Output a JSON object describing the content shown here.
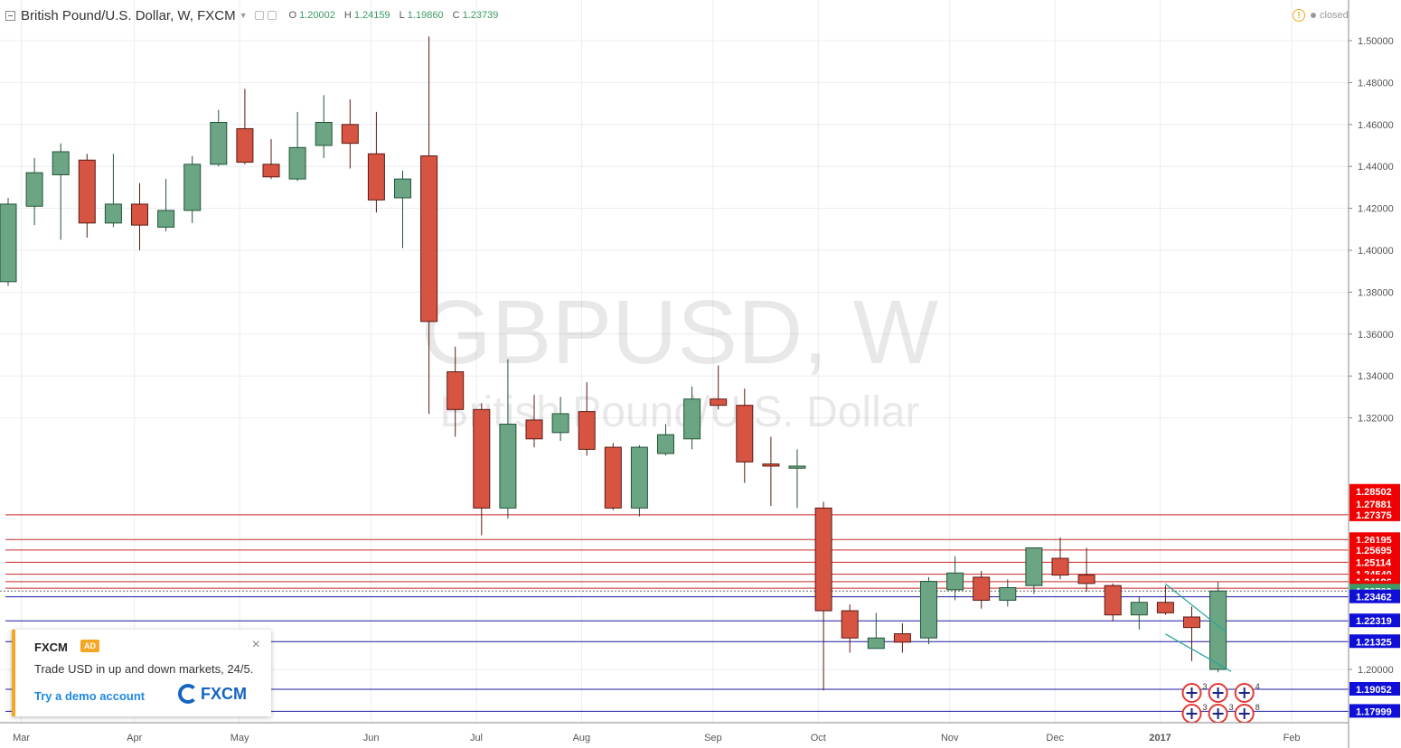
{
  "header": {
    "title": "British Pound/U.S. Dollar, W, FXCM",
    "ohlc": [
      {
        "k": "O",
        "v": "1.20002"
      },
      {
        "k": "H",
        "v": "1.24159"
      },
      {
        "k": "L",
        "v": "1.19860"
      },
      {
        "k": "C",
        "v": "1.23739"
      }
    ]
  },
  "status": {
    "label": "closed",
    "warning_icon": "!"
  },
  "watermark": {
    "symbol": "GBPUSD, W",
    "name": "British Pound/U.S. Dollar"
  },
  "colors": {
    "up": "#6ba583",
    "up_border": "#225437",
    "down": "#d75442",
    "down_border": "#5b1a13",
    "red_line": "#c62828",
    "blue_line": "#1a1aa0",
    "grid": "#e9edf1",
    "axis_text": "#555555",
    "current": "#3c9a63",
    "trend": "#26a69a"
  },
  "ad": {
    "brand": "FXCM",
    "badge": "AD",
    "text": "Trade USD in up and down markets, 24/5.",
    "cta": "Try a demo account",
    "logo": "FXCM",
    "close": "×"
  },
  "chart_data": {
    "type": "candlestick",
    "y_ticks": [
      "1.50000",
      "1.48000",
      "1.46000",
      "1.44000",
      "1.42000",
      "1.40000",
      "1.38000",
      "1.36000",
      "1.34000",
      "1.32000",
      "1.20000"
    ],
    "x_labels": [
      {
        "label": "Mar",
        "index": 0.5
      },
      {
        "label": "Apr",
        "index": 4.8
      },
      {
        "label": "May",
        "index": 8.8
      },
      {
        "label": "Jun",
        "index": 13.8
      },
      {
        "label": "Jul",
        "index": 17.8
      },
      {
        "label": "Aug",
        "index": 21.8
      },
      {
        "label": "Sep",
        "index": 26.8
      },
      {
        "label": "Oct",
        "index": 30.8
      },
      {
        "label": "Nov",
        "index": 35.8
      },
      {
        "label": "Dec",
        "index": 39.8
      },
      {
        "label": "2017",
        "index": 43.8,
        "bold": true
      },
      {
        "label": "Feb",
        "index": 48.8
      }
    ],
    "candles": [
      {
        "o": 1.385,
        "h": 1.425,
        "l": 1.383,
        "c": 1.422
      },
      {
        "o": 1.421,
        "h": 1.444,
        "l": 1.412,
        "c": 1.437
      },
      {
        "o": 1.436,
        "h": 1.451,
        "l": 1.405,
        "c": 1.447
      },
      {
        "o": 1.443,
        "h": 1.446,
        "l": 1.406,
        "c": 1.413
      },
      {
        "o": 1.413,
        "h": 1.446,
        "l": 1.411,
        "c": 1.422
      },
      {
        "o": 1.422,
        "h": 1.432,
        "l": 1.4,
        "c": 1.412
      },
      {
        "o": 1.411,
        "h": 1.434,
        "l": 1.409,
        "c": 1.419
      },
      {
        "o": 1.419,
        "h": 1.445,
        "l": 1.413,
        "c": 1.441
      },
      {
        "o": 1.441,
        "h": 1.467,
        "l": 1.44,
        "c": 1.461
      },
      {
        "o": 1.458,
        "h": 1.477,
        "l": 1.441,
        "c": 1.442
      },
      {
        "o": 1.441,
        "h": 1.453,
        "l": 1.434,
        "c": 1.435
      },
      {
        "o": 1.434,
        "h": 1.466,
        "l": 1.433,
        "c": 1.449
      },
      {
        "o": 1.45,
        "h": 1.474,
        "l": 1.444,
        "c": 1.461
      },
      {
        "o": 1.46,
        "h": 1.472,
        "l": 1.439,
        "c": 1.451
      },
      {
        "o": 1.446,
        "h": 1.466,
        "l": 1.418,
        "c": 1.424
      },
      {
        "o": 1.425,
        "h": 1.438,
        "l": 1.401,
        "c": 1.434
      },
      {
        "o": 1.445,
        "h": 1.502,
        "l": 1.322,
        "c": 1.366
      },
      {
        "o": 1.342,
        "h": 1.354,
        "l": 1.311,
        "c": 1.324
      },
      {
        "o": 1.324,
        "h": 1.327,
        "l": 1.264,
        "c": 1.277
      },
      {
        "o": 1.277,
        "h": 1.348,
        "l": 1.272,
        "c": 1.317
      },
      {
        "o": 1.319,
        "h": 1.331,
        "l": 1.306,
        "c": 1.31
      },
      {
        "o": 1.313,
        "h": 1.33,
        "l": 1.309,
        "c": 1.322
      },
      {
        "o": 1.323,
        "h": 1.337,
        "l": 1.302,
        "c": 1.305
      },
      {
        "o": 1.306,
        "h": 1.308,
        "l": 1.276,
        "c": 1.277
      },
      {
        "o": 1.277,
        "h": 1.307,
        "l": 1.273,
        "c": 1.306
      },
      {
        "o": 1.303,
        "h": 1.317,
        "l": 1.302,
        "c": 1.312
      },
      {
        "o": 1.31,
        "h": 1.335,
        "l": 1.305,
        "c": 1.329
      },
      {
        "o": 1.329,
        "h": 1.345,
        "l": 1.324,
        "c": 1.326
      },
      {
        "o": 1.326,
        "h": 1.334,
        "l": 1.289,
        "c": 1.299
      },
      {
        "o": 1.298,
        "h": 1.311,
        "l": 1.278,
        "c": 1.297
      },
      {
        "o": 1.296,
        "h": 1.305,
        "l": 1.277,
        "c": 1.297
      },
      {
        "o": 1.277,
        "h": 1.28,
        "l": 1.19,
        "c": 1.228
      },
      {
        "o": 1.228,
        "h": 1.231,
        "l": 1.208,
        "c": 1.215
      },
      {
        "o": 1.21,
        "h": 1.227,
        "l": 1.21,
        "c": 1.215
      },
      {
        "o": 1.217,
        "h": 1.222,
        "l": 1.208,
        "c": 1.213
      },
      {
        "o": 1.215,
        "h": 1.244,
        "l": 1.212,
        "c": 1.242
      },
      {
        "o": 1.238,
        "h": 1.254,
        "l": 1.233,
        "c": 1.246
      },
      {
        "o": 1.244,
        "h": 1.247,
        "l": 1.229,
        "c": 1.233
      },
      {
        "o": 1.233,
        "h": 1.243,
        "l": 1.23,
        "c": 1.239
      },
      {
        "o": 1.24,
        "h": 1.258,
        "l": 1.236,
        "c": 1.258
      },
      {
        "o": 1.253,
        "h": 1.263,
        "l": 1.243,
        "c": 1.245
      },
      {
        "o": 1.245,
        "h": 1.258,
        "l": 1.237,
        "c": 1.241
      },
      {
        "o": 1.24,
        "h": 1.241,
        "l": 1.223,
        "c": 1.226
      },
      {
        "o": 1.226,
        "h": 1.235,
        "l": 1.219,
        "c": 1.232
      },
      {
        "o": 1.232,
        "h": 1.24,
        "l": 1.226,
        "c": 1.227
      },
      {
        "o": 1.225,
        "h": 1.23,
        "l": 1.204,
        "c": 1.22
      },
      {
        "o": 1.2,
        "h": 1.2416,
        "l": 1.1986,
        "c": 1.2374
      }
    ],
    "levels": [
      {
        "value": 1.28502,
        "label": "1.28502",
        "kind": "red",
        "line": false
      },
      {
        "value": 1.27881,
        "label": "1.27881",
        "kind": "red",
        "line": false
      },
      {
        "value": 1.27375,
        "label": "1.27375",
        "kind": "red",
        "line": true
      },
      {
        "value": 1.26195,
        "label": "1.26195",
        "kind": "red",
        "line": true
      },
      {
        "value": 1.25695,
        "label": "1.25695",
        "kind": "red",
        "line": true
      },
      {
        "value": 1.25114,
        "label": "1.25114",
        "kind": "red",
        "line": true
      },
      {
        "value": 1.2454,
        "label": "1.24540",
        "kind": "red",
        "line": true
      },
      {
        "value": 1.24186,
        "label": "1.24186",
        "kind": "red",
        "line": true
      },
      {
        "value": 1.23875,
        "label": "1.23875",
        "kind": "red",
        "line": true
      },
      {
        "value": 1.23739,
        "label": "1.23739",
        "kind": "current",
        "line": false
      },
      {
        "value": 1.23462,
        "label": "1.23462",
        "kind": "blue",
        "line": true
      },
      {
        "value": 1.22319,
        "label": "1.22319",
        "kind": "blue",
        "line": true
      },
      {
        "value": 1.21325,
        "label": "1.21325",
        "kind": "blue",
        "line": true
      },
      {
        "value": 1.19052,
        "label": "1.19052",
        "kind": "blue",
        "line": true
      },
      {
        "value": 1.17999,
        "label": "1.17999",
        "kind": "blue",
        "line": true
      }
    ],
    "trendlines": [
      {
        "i1": 44.0,
        "p1": 1.2408,
        "i2": 46.3,
        "p2": 1.2178
      },
      {
        "i1": 44.0,
        "p1": 1.2169,
        "i2": 46.5,
        "p2": 1.199
      }
    ],
    "events": [
      {
        "index": 45.0,
        "row": 0,
        "count": "3"
      },
      {
        "index": 46.0,
        "row": 0,
        "count": ""
      },
      {
        "index": 47.0,
        "row": 0,
        "count": "4"
      },
      {
        "index": 45.0,
        "row": 1,
        "count": "3"
      },
      {
        "index": 46.0,
        "row": 1,
        "count": "3"
      },
      {
        "index": 47.0,
        "row": 1,
        "count": "8"
      }
    ]
  }
}
